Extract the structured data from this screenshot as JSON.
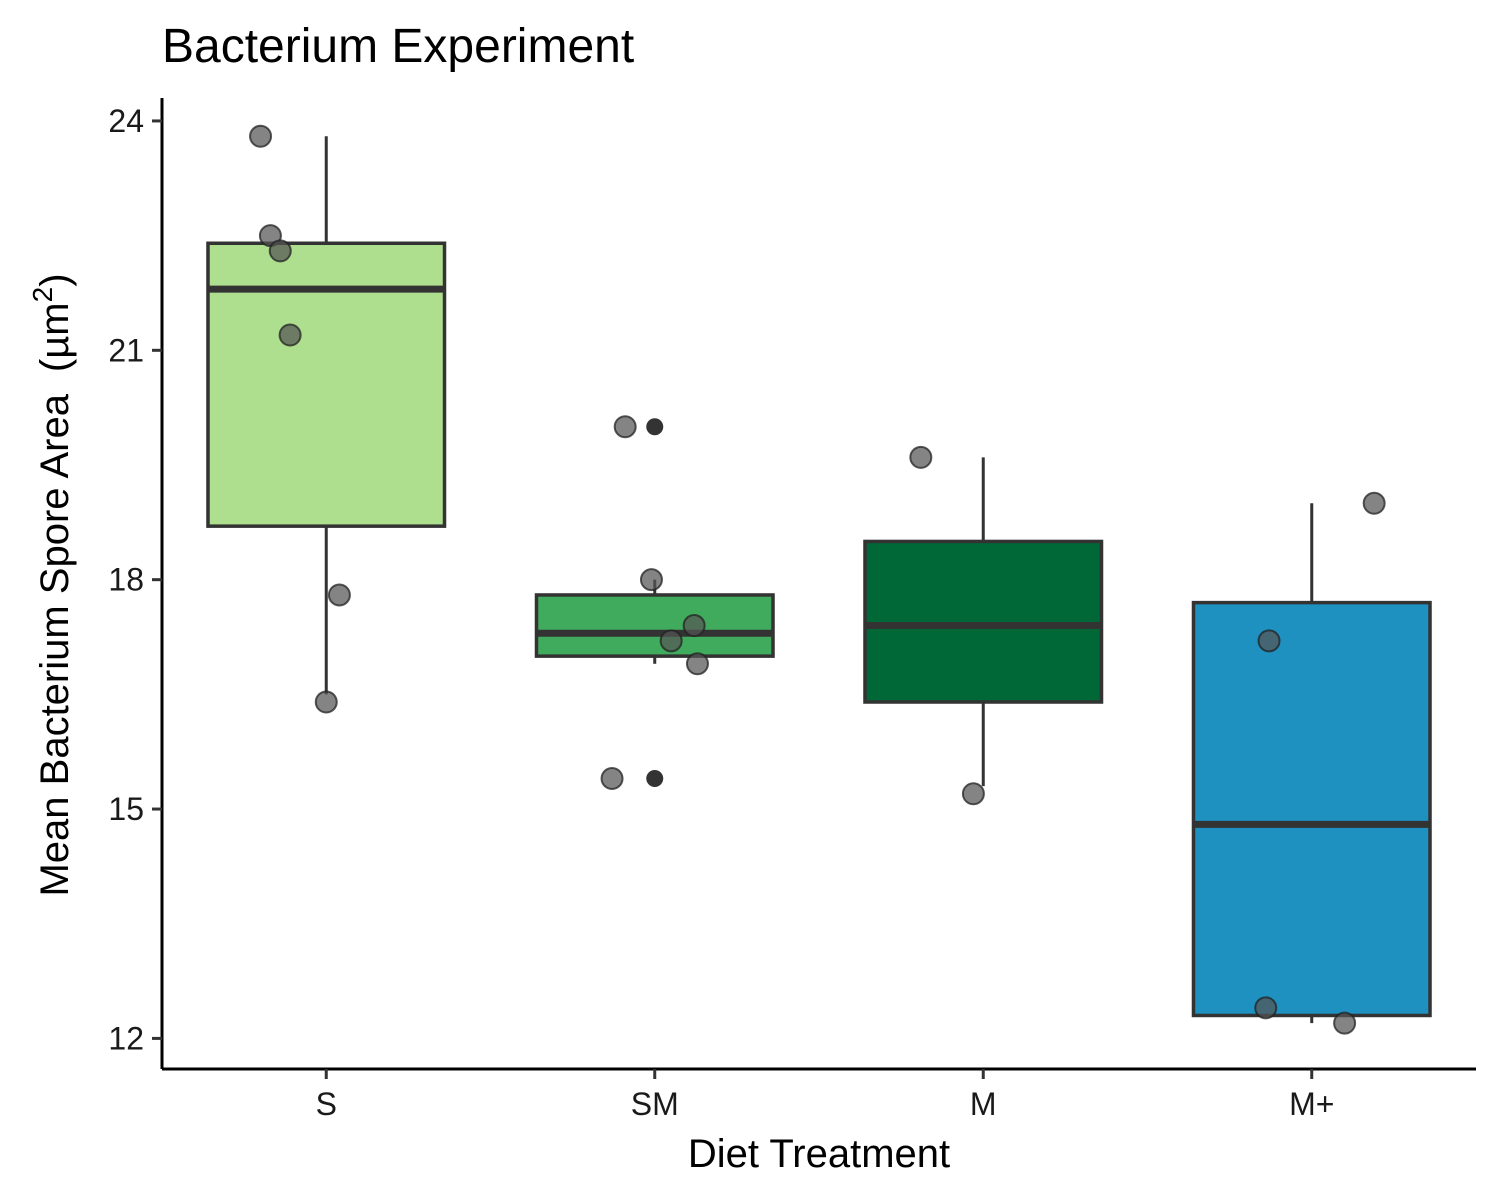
{
  "chart_data": {
    "type": "box",
    "title": "Bacterium Experiment",
    "xlabel": "Diet Treatment",
    "ylabel": "Mean Bacterium Spore Area",
    "ylabel_unit_base": "(µm",
    "ylabel_unit_sup": "2",
    "ylabel_unit_close": ")",
    "ylim": [
      11.6,
      24.3
    ],
    "y_ticks": [
      12,
      15,
      18,
      21,
      24
    ],
    "y_tick_labels": [
      "12",
      "15",
      "18",
      "21",
      "24"
    ],
    "categories": [
      "S",
      "SM",
      "M",
      "M+"
    ],
    "grid": false,
    "legend": "none",
    "boxes": [
      {
        "category": "S",
        "fill": "#addf8e",
        "min": 16.5,
        "q1": 18.7,
        "median": 21.8,
        "q3": 22.4,
        "max": 23.8,
        "outliers": []
      },
      {
        "category": "SM",
        "fill": "#41ab5d",
        "min": 16.9,
        "q1": 17.0,
        "median": 17.3,
        "q3": 17.8,
        "max": 18.0,
        "outliers": [
          20.0,
          15.4
        ]
      },
      {
        "category": "M",
        "fill": "#006837",
        "min": 15.3,
        "q1": 16.4,
        "median": 17.4,
        "q3": 18.5,
        "max": 19.6,
        "outliers": []
      },
      {
        "category": "M+",
        "fill": "#1f91c1",
        "min": 12.2,
        "q1": 12.3,
        "median": 14.8,
        "q3": 17.7,
        "max": 19.0,
        "outliers": []
      }
    ],
    "points": [
      {
        "category": "S",
        "jitter": -0.2,
        "y": 23.8
      },
      {
        "category": "S",
        "jitter": -0.17,
        "y": 22.5
      },
      {
        "category": "S",
        "jitter": -0.14,
        "y": 22.3
      },
      {
        "category": "S",
        "jitter": -0.11,
        "y": 21.2
      },
      {
        "category": "S",
        "jitter": 0.04,
        "y": 17.8
      },
      {
        "category": "S",
        "jitter": 0.0,
        "y": 16.4
      },
      {
        "category": "SM",
        "jitter": -0.09,
        "y": 20.0
      },
      {
        "category": "SM",
        "jitter": -0.01,
        "y": 18.0
      },
      {
        "category": "SM",
        "jitter": 0.12,
        "y": 17.4
      },
      {
        "category": "SM",
        "jitter": 0.05,
        "y": 17.2
      },
      {
        "category": "SM",
        "jitter": 0.13,
        "y": 16.9
      },
      {
        "category": "SM",
        "jitter": -0.13,
        "y": 15.4
      },
      {
        "category": "M",
        "jitter": -0.19,
        "y": 19.6
      },
      {
        "category": "M",
        "jitter": -0.03,
        "y": 15.2
      },
      {
        "category": "M+",
        "jitter": 0.19,
        "y": 19.0
      },
      {
        "category": "M+",
        "jitter": -0.13,
        "y": 17.2
      },
      {
        "category": "M+",
        "jitter": -0.14,
        "y": 12.4
      },
      {
        "category": "M+",
        "jitter": 0.1,
        "y": 12.2
      }
    ],
    "colors": {
      "box_outline": "#333333",
      "point_fill": "#555555",
      "outlier": "#333333"
    }
  }
}
